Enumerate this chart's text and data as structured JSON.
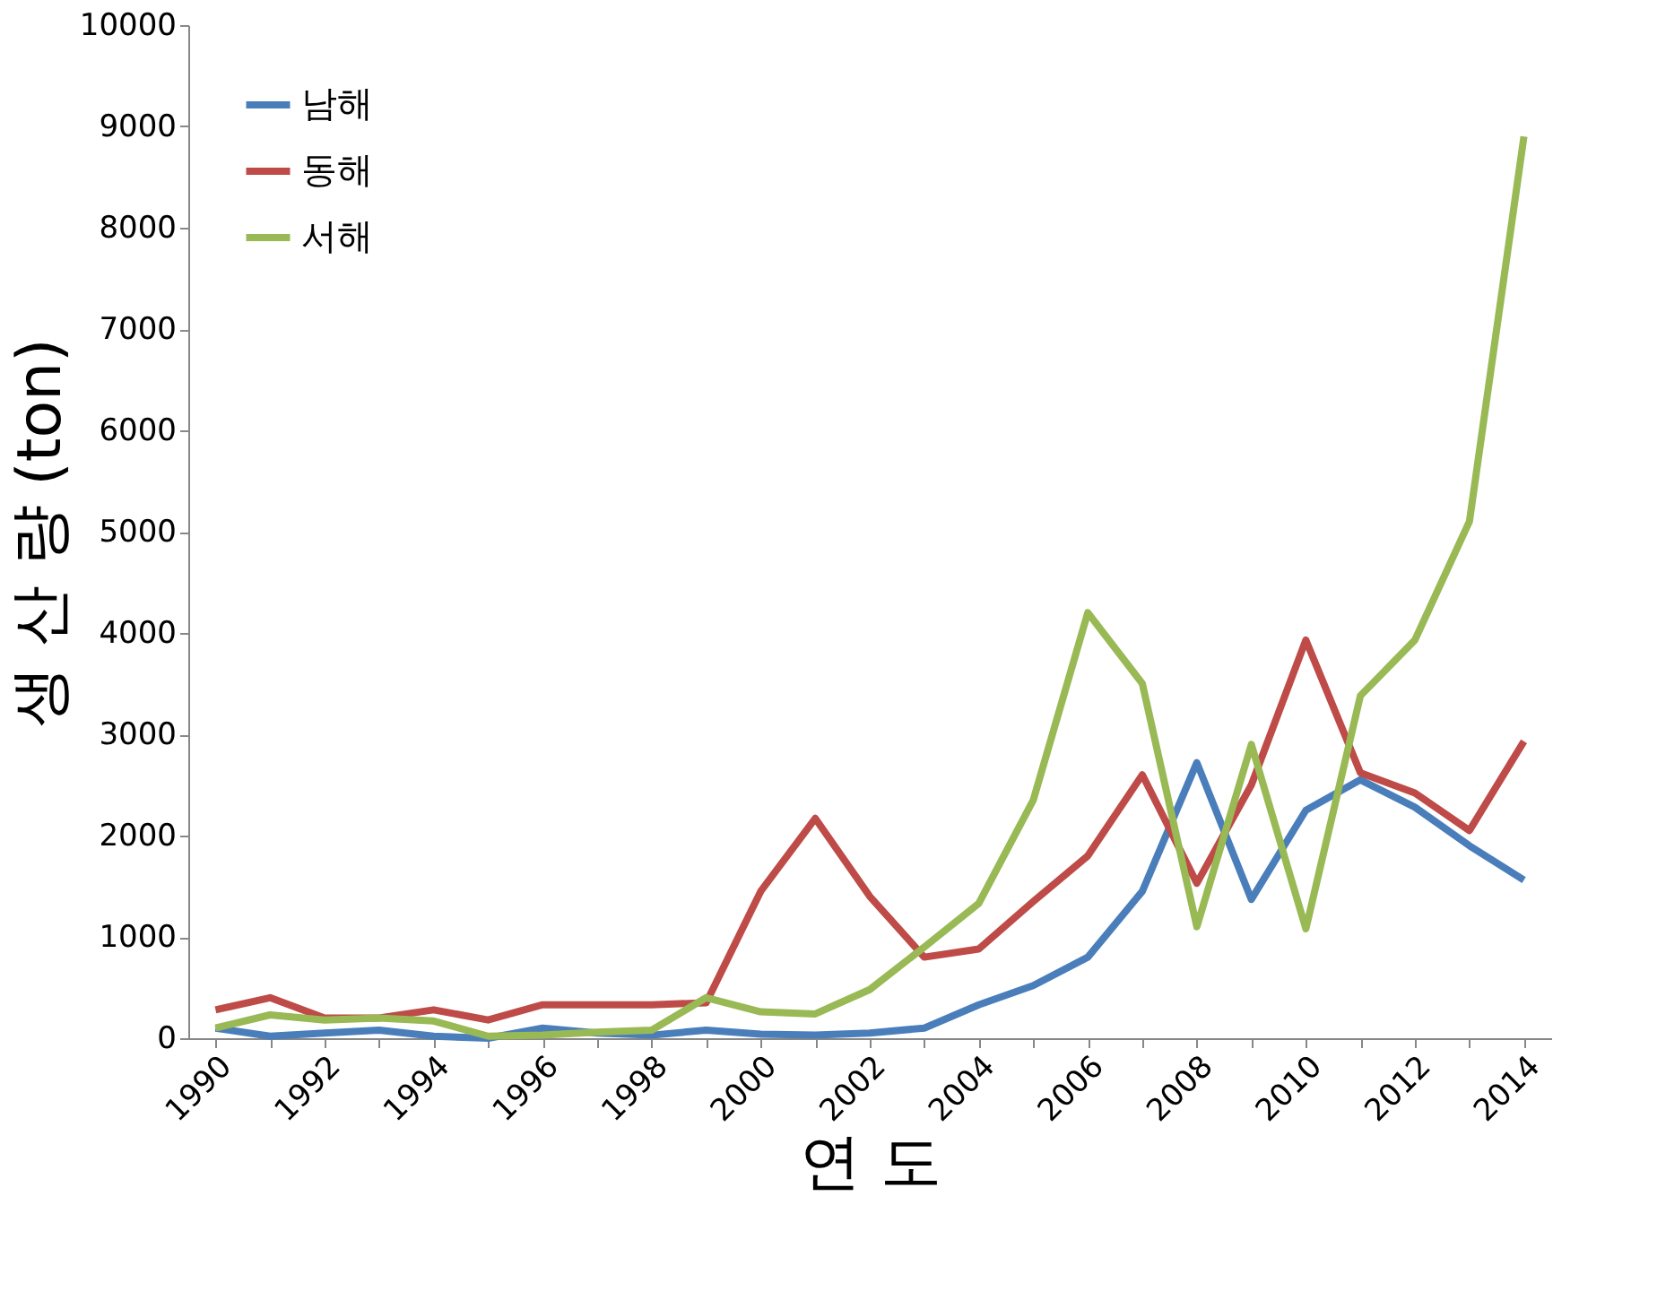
{
  "chart_data": {
    "type": "line",
    "xlabel": "연 도",
    "ylabel": "생 산 량 (ton)",
    "categories": [
      "1990",
      null,
      "1992",
      null,
      "1994",
      null,
      "1996",
      null,
      "1998",
      null,
      "2000",
      null,
      "2002",
      null,
      "2004",
      null,
      "2006",
      null,
      "2008",
      null,
      "2010",
      null,
      "2012",
      null,
      "2014"
    ],
    "series": [
      {
        "name": "남해",
        "color": "#4a7ebb",
        "values": [
          100,
          20,
          50,
          80,
          20,
          0,
          100,
          50,
          30,
          80,
          40,
          30,
          50,
          100,
          330,
          520,
          800,
          1450,
          2720,
          1370,
          2250,
          2550,
          2280,
          1900,
          1560
        ]
      },
      {
        "name": "동해",
        "color": "#be4b48",
        "values": [
          280,
          400,
          200,
          200,
          280,
          180,
          330,
          330,
          330,
          350,
          1450,
          2170,
          1400,
          800,
          880,
          1350,
          1800,
          2600,
          1530,
          2500,
          3930,
          2620,
          2420,
          2050,
          2930
        ]
      },
      {
        "name": "서해",
        "color": "#98b954",
        "values": [
          100,
          230,
          180,
          200,
          170,
          20,
          30,
          60,
          80,
          400,
          260,
          240,
          480,
          900,
          1330,
          2350,
          4200,
          3500,
          1100,
          2900,
          1080,
          3380,
          3930,
          5100,
          8900
        ]
      }
    ],
    "ylim": [
      0,
      10000
    ],
    "yticks": [
      0,
      1000,
      2000,
      3000,
      4000,
      5000,
      6000,
      7000,
      8000,
      9000,
      10000
    ],
    "grid": false,
    "legend": "top left",
    "line_style": "solid",
    "marker": "none"
  }
}
